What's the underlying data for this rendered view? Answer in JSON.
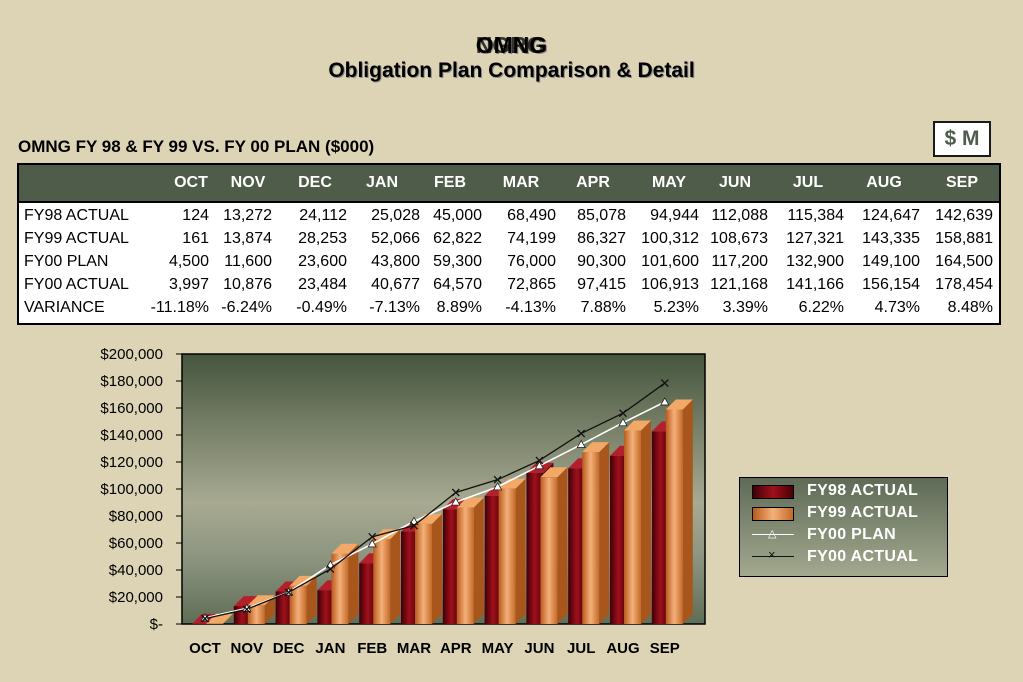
{
  "header": {
    "title_line1": "OMNG",
    "title_line1_overprint": "NGRG",
    "title_line2": "Obligation Plan Comparison & Detail"
  },
  "table": {
    "caption": "OMNG FY 98 & FY 99 VS. FY 00 PLAN ($000)",
    "units_badge": "$ M",
    "months": [
      "OCT",
      "NOV",
      "DEC",
      "JAN",
      "FEB",
      "MAR",
      "APR",
      "MAY",
      "JUN",
      "JUL",
      "AUG",
      "SEP"
    ],
    "rows": [
      {
        "label": "FY98 ACTUAL",
        "values": [
          "124",
          "13,272",
          "24,112",
          "25,028",
          "45,000",
          "68,490",
          "85,078",
          "94,944",
          "112,088",
          "115,384",
          "124,647",
          "142,639"
        ]
      },
      {
        "label": "FY99 ACTUAL",
        "values": [
          "161",
          "13,874",
          "28,253",
          "52,066",
          "62,822",
          "74,199",
          "86,327",
          "100,312",
          "108,673",
          "127,321",
          "143,335",
          "158,881"
        ]
      },
      {
        "label": "FY00 PLAN",
        "values": [
          "4,500",
          "11,600",
          "23,600",
          "43,800",
          "59,300",
          "76,000",
          "90,300",
          "101,600",
          "117,200",
          "132,900",
          "149,100",
          "164,500"
        ]
      },
      {
        "label": "FY00 ACTUAL",
        "values": [
          "3,997",
          "10,876",
          "23,484",
          "40,677",
          "64,570",
          "72,865",
          "97,415",
          "106,913",
          "121,168",
          "141,166",
          "156,154",
          "178,454"
        ]
      },
      {
        "label": "VARIANCE",
        "values": [
          "-11.18%",
          "-6.24%",
          "-0.49%",
          "-7.13%",
          "8.89%",
          "-4.13%",
          "7.88%",
          "5.23%",
          "3.39%",
          "6.22%",
          "4.73%",
          "8.48%"
        ]
      }
    ]
  },
  "chart_data": {
    "type": "bar",
    "categories": [
      "OCT",
      "NOV",
      "DEC",
      "JAN",
      "FEB",
      "MAR",
      "APR",
      "MAY",
      "JUN",
      "JUL",
      "AUG",
      "SEP"
    ],
    "ylim": [
      0,
      200000
    ],
    "y_ticks": [
      0,
      20000,
      40000,
      60000,
      80000,
      100000,
      120000,
      140000,
      160000,
      180000,
      200000
    ],
    "y_tick_labels": [
      "$-",
      "$20,000",
      "$40,000",
      "$60,000",
      "$80,000",
      "$100,000",
      "$120,000",
      "$140,000",
      "$160,000",
      "$180,000",
      "$200,000"
    ],
    "legend_position": "right",
    "series": [
      {
        "name": "FY98 ACTUAL",
        "kind": "bar",
        "color": "#7a0b14",
        "values": [
          124,
          13272,
          24112,
          25028,
          45000,
          68490,
          85078,
          94944,
          112088,
          115384,
          124647,
          142639
        ]
      },
      {
        "name": "FY99 ACTUAL",
        "kind": "bar",
        "color": "#d9823e",
        "values": [
          161,
          13874,
          28253,
          52066,
          62822,
          74199,
          86327,
          100312,
          108673,
          127321,
          143335,
          158881
        ]
      },
      {
        "name": "FY00 PLAN",
        "kind": "line",
        "marker": "triangle",
        "color": "#ffffff",
        "values": [
          4500,
          11600,
          23600,
          43800,
          59300,
          76000,
          90300,
          101600,
          117200,
          132900,
          149100,
          164500
        ]
      },
      {
        "name": "FY00 ACTUAL",
        "kind": "line",
        "marker": "x",
        "color": "#111111",
        "values": [
          3997,
          10876,
          23484,
          40677,
          64570,
          72865,
          97415,
          106913,
          121168,
          141166,
          156154,
          178454
        ]
      }
    ]
  },
  "legend": {
    "items": [
      "FY98 ACTUAL",
      "FY99 ACTUAL",
      "FY00 PLAN",
      "FY00 ACTUAL"
    ]
  }
}
